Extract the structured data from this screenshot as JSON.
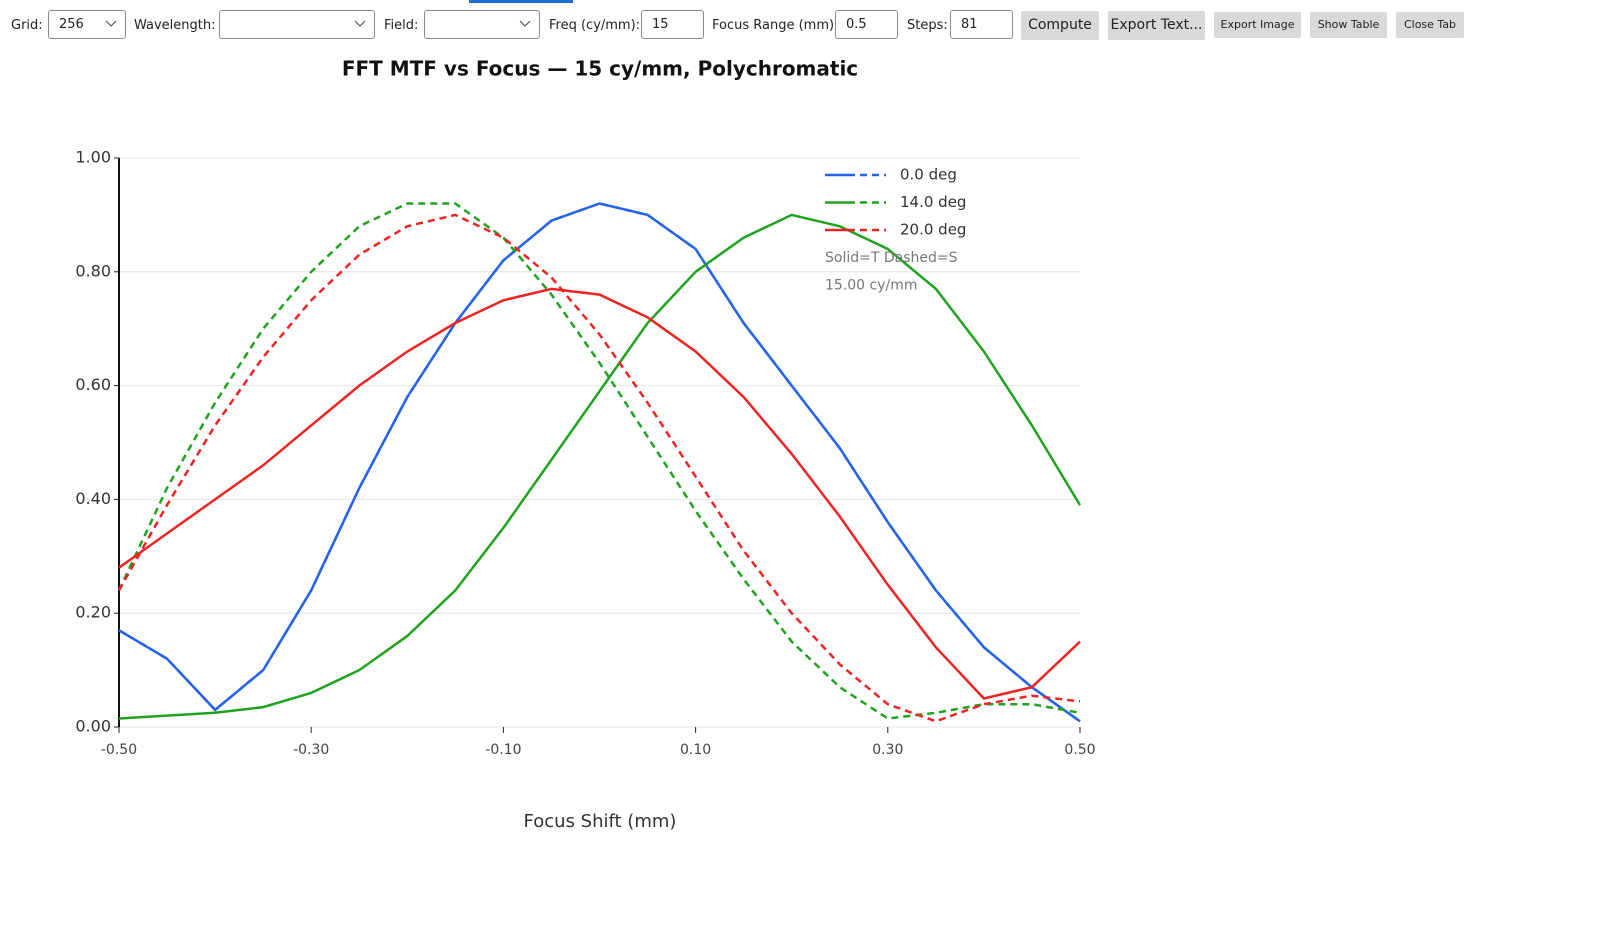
{
  "toolbar": {
    "grid_label": "Grid:",
    "grid_value": "256",
    "wavelength_label": "Wavelength:",
    "field_label": "Field:",
    "freq_label": "Freq (cy/mm):",
    "freq_value": "15",
    "range_label": "Focus Range (mm):",
    "range_value": "0.5",
    "steps_label": "Steps:",
    "steps_value": "81",
    "buttons": [
      "Compute",
      "Export Text...",
      "Export Image",
      "Show Table",
      "Close Tab"
    ]
  },
  "chart_data": {
    "type": "line",
    "title": "FFT MTF vs Focus — 15 cy/mm, Polychromatic",
    "x_label": "Focus Shift (mm)",
    "annotations": [
      "Solid=T Dashed=S",
      "15.00 cy/mm"
    ],
    "x": [
      -0.5,
      -0.45,
      -0.4,
      -0.35,
      -0.3,
      -0.25,
      -0.2,
      -0.15,
      -0.1,
      -0.05,
      0,
      0.05,
      0.1,
      0.15,
      0.2,
      0.25,
      0.3,
      0.35,
      0.4,
      0.45,
      0.5
    ],
    "series": [
      {
        "name": "0.0 deg",
        "color": "#2563eb",
        "tangential": [
          0.17,
          0.12,
          0.03,
          0.1,
          0.24,
          0.42,
          0.58,
          0.71,
          0.82,
          0.89,
          0.92,
          0.9,
          0.84,
          0.71,
          0.6,
          0.49,
          0.36,
          0.24,
          0.14,
          0.07,
          0.01
        ],
        "sagittal": [
          0.17,
          0.12,
          0.03,
          0.1,
          0.24,
          0.42,
          0.58,
          0.71,
          0.82,
          0.89,
          0.92,
          0.9,
          0.84,
          0.71,
          0.6,
          0.49,
          0.36,
          0.24,
          0.14,
          0.07,
          0.01
        ]
      },
      {
        "name": "14.0 deg",
        "color": "#1fa31f",
        "tangential": [
          0.015,
          0.02,
          0.025,
          0.035,
          0.06,
          0.1,
          0.16,
          0.24,
          0.35,
          0.47,
          0.59,
          0.71,
          0.8,
          0.86,
          0.9,
          0.88,
          0.84,
          0.77,
          0.66,
          0.53,
          0.39
        ],
        "sagittal": [
          0.24,
          0.42,
          0.57,
          0.7,
          0.8,
          0.88,
          0.92,
          0.92,
          0.86,
          0.76,
          0.64,
          0.51,
          0.38,
          0.26,
          0.15,
          0.07,
          0.015,
          0.025,
          0.04,
          0.04,
          0.025
        ]
      },
      {
        "name": "20.0 deg",
        "color": "#ef2323",
        "tangential": [
          0.28,
          0.34,
          0.4,
          0.46,
          0.53,
          0.6,
          0.66,
          0.71,
          0.75,
          0.77,
          0.76,
          0.72,
          0.66,
          0.58,
          0.48,
          0.37,
          0.25,
          0.14,
          0.05,
          0.07,
          0.15
        ],
        "sagittal": [
          0.24,
          0.39,
          0.53,
          0.65,
          0.75,
          0.83,
          0.88,
          0.9,
          0.86,
          0.79,
          0.69,
          0.57,
          0.44,
          0.31,
          0.2,
          0.11,
          0.04,
          0.01,
          0.04,
          0.055,
          0.045
        ]
      }
    ],
    "xlim": [
      -0.5,
      0.5
    ],
    "xticks": [
      {
        "value": -0.5,
        "label": "-0.50"
      },
      {
        "value": -0.3,
        "label": "-0.30"
      },
      {
        "value": -0.1,
        "label": "-0.10"
      },
      {
        "value": 0.1,
        "label": "0.10"
      },
      {
        "value": 0.3,
        "label": "0.30"
      },
      {
        "value": 0.5,
        "label": "0.50"
      }
    ],
    "ylim": [
      0,
      1
    ],
    "yticks": [
      {
        "value": 0,
        "label": "0.00"
      },
      {
        "value": 0.2,
        "label": "0.20"
      },
      {
        "value": 0.4,
        "label": "0.40"
      },
      {
        "value": 0.6,
        "label": "0.60"
      },
      {
        "value": 0.8,
        "label": "0.80"
      },
      {
        "value": 1,
        "label": "1.00"
      }
    ],
    "grid": true
  }
}
